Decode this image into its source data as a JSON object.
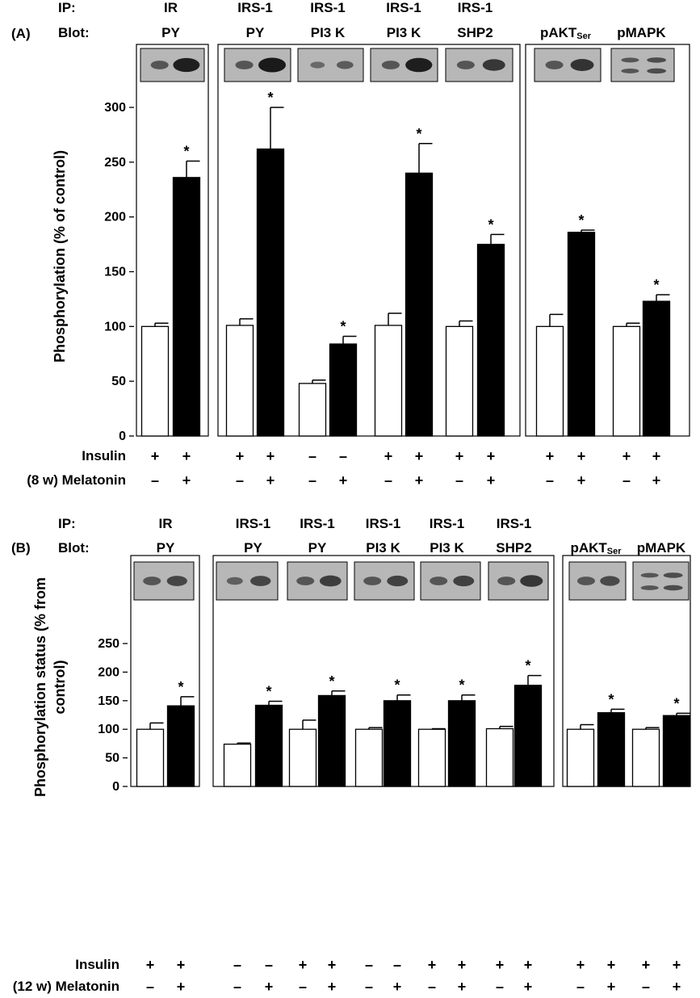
{
  "figure": {
    "panels": [
      {
        "id": "A",
        "panel_label": "(A)",
        "ip_label": "IP:",
        "blot_label": "Blot:",
        "ylabel_lines": [
          "Phosphorylation (% of control)"
        ],
        "yticks": [
          0,
          50,
          100,
          150,
          200,
          250,
          300
        ],
        "row_labels": [
          "Insulin",
          "(8 w) Melatonin"
        ]
      },
      {
        "id": "B",
        "panel_label": "(B)",
        "ip_label": "IP:",
        "blot_label": "Blot:",
        "ylabel_lines": [
          "Phosphorylation status (% from",
          "control)"
        ],
        "yticks": [
          0,
          50,
          100,
          150,
          200,
          250
        ],
        "row_labels": [
          "Insulin",
          "(12 w) Melatonin"
        ]
      }
    ],
    "colors": {
      "control_bar": "#ffffff",
      "melatonin_bar": "#000000",
      "blot_bg": "#b7b7b7"
    }
  },
  "chart_data": [
    {
      "type": "bar",
      "panel": "A",
      "ylim": [
        0,
        300
      ],
      "groups": [
        {
          "ip": "IR",
          "blot": "PY",
          "bars": [
            {
              "value": 100,
              "err": 3,
              "insulin": "+",
              "melatonin": "–",
              "star": false
            },
            {
              "value": 236,
              "err": 15,
              "insulin": "+",
              "melatonin": "+",
              "star": true
            }
          ]
        },
        {
          "ip": "IRS-1",
          "blot": "PY",
          "bars": [
            {
              "value": 101,
              "err": 6,
              "insulin": "+",
              "melatonin": "–",
              "star": false
            },
            {
              "value": 262,
              "err": 38,
              "insulin": "+",
              "melatonin": "+",
              "star": true
            }
          ]
        },
        {
          "ip": "IRS-1",
          "blot": "PI3 K",
          "bars": [
            {
              "value": 48,
              "err": 3,
              "insulin": "–",
              "melatonin": "–",
              "star": false
            },
            {
              "value": 84,
              "err": 7,
              "insulin": "–",
              "melatonin": "+",
              "star": true
            }
          ]
        },
        {
          "ip": "IRS-1",
          "blot": "PI3 K",
          "bars": [
            {
              "value": 101,
              "err": 11,
              "insulin": "+",
              "melatonin": "–",
              "star": false
            },
            {
              "value": 240,
              "err": 27,
              "insulin": "+",
              "melatonin": "+",
              "star": true
            }
          ]
        },
        {
          "ip": "IRS-1",
          "blot": "SHP2",
          "bars": [
            {
              "value": 100,
              "err": 5,
              "insulin": "+",
              "melatonin": "–",
              "star": false
            },
            {
              "value": 175,
              "err": 9,
              "insulin": "+",
              "melatonin": "+",
              "star": true
            }
          ]
        },
        {
          "ip": "",
          "blot": "pAKTSer",
          "bars": [
            {
              "value": 100,
              "err": 11,
              "insulin": "+",
              "melatonin": "–",
              "star": false
            },
            {
              "value": 186,
              "err": 2,
              "insulin": "+",
              "melatonin": "+",
              "star": true
            }
          ]
        },
        {
          "ip": "",
          "blot": "pMAPK",
          "bars": [
            {
              "value": 100,
              "err": 3,
              "insulin": "+",
              "melatonin": "–",
              "star": false
            },
            {
              "value": 123,
              "err": 6,
              "insulin": "+",
              "melatonin": "+",
              "star": true
            }
          ]
        }
      ]
    },
    {
      "type": "bar",
      "panel": "B",
      "ylim": [
        0,
        250
      ],
      "groups": [
        {
          "ip": "IR",
          "blot": "PY",
          "bars": [
            {
              "value": 100,
              "err": 11,
              "insulin": "+",
              "melatonin": "–",
              "star": false
            },
            {
              "value": 141,
              "err": 16,
              "insulin": "+",
              "melatonin": "+",
              "star": true
            }
          ]
        },
        {
          "ip": "IRS-1",
          "blot": "PY",
          "bars": [
            {
              "value": 74,
              "err": 2,
              "insulin": "–",
              "melatonin": "–",
              "star": false
            },
            {
              "value": 142,
              "err": 7,
              "insulin": "–",
              "melatonin": "+",
              "star": true
            }
          ]
        },
        {
          "ip": "IRS-1",
          "blot": "PY",
          "bars": [
            {
              "value": 100,
              "err": 16,
              "insulin": "+",
              "melatonin": "–",
              "star": false
            },
            {
              "value": 159,
              "err": 8,
              "insulin": "+",
              "melatonin": "+",
              "star": true
            }
          ]
        },
        {
          "ip": "IRS-1",
          "blot": "PI3 K",
          "bars": [
            {
              "value": 100,
              "err": 3,
              "insulin": "–",
              "melatonin": "–",
              "star": false
            },
            {
              "value": 150,
              "err": 10,
              "insulin": "–",
              "melatonin": "+",
              "star": true
            }
          ]
        },
        {
          "ip": "IRS-1",
          "blot": "PI3 K",
          "bars": [
            {
              "value": 100,
              "err": 1,
              "insulin": "+",
              "melatonin": "–",
              "star": false
            },
            {
              "value": 150,
              "err": 10,
              "insulin": "+",
              "melatonin": "+",
              "star": true
            }
          ]
        },
        {
          "ip": "IRS-1",
          "blot": "SHP2",
          "bars": [
            {
              "value": 101,
              "err": 4,
              "insulin": "+",
              "melatonin": "–",
              "star": false
            },
            {
              "value": 177,
              "err": 17,
              "insulin": "+",
              "melatonin": "+",
              "star": true
            }
          ]
        },
        {
          "ip": "",
          "blot": "pAKTSer",
          "bars": [
            {
              "value": 100,
              "err": 8,
              "insulin": "+",
              "melatonin": "–",
              "star": false
            },
            {
              "value": 129,
              "err": 6,
              "insulin": "+",
              "melatonin": "+",
              "star": true
            }
          ]
        },
        {
          "ip": "",
          "blot": "pMAPK",
          "bars": [
            {
              "value": 100,
              "err": 3,
              "insulin": "+",
              "melatonin": "–",
              "star": false
            },
            {
              "value": 124,
              "err": 4,
              "insulin": "+",
              "melatonin": "+",
              "star": true
            }
          ]
        }
      ]
    }
  ]
}
